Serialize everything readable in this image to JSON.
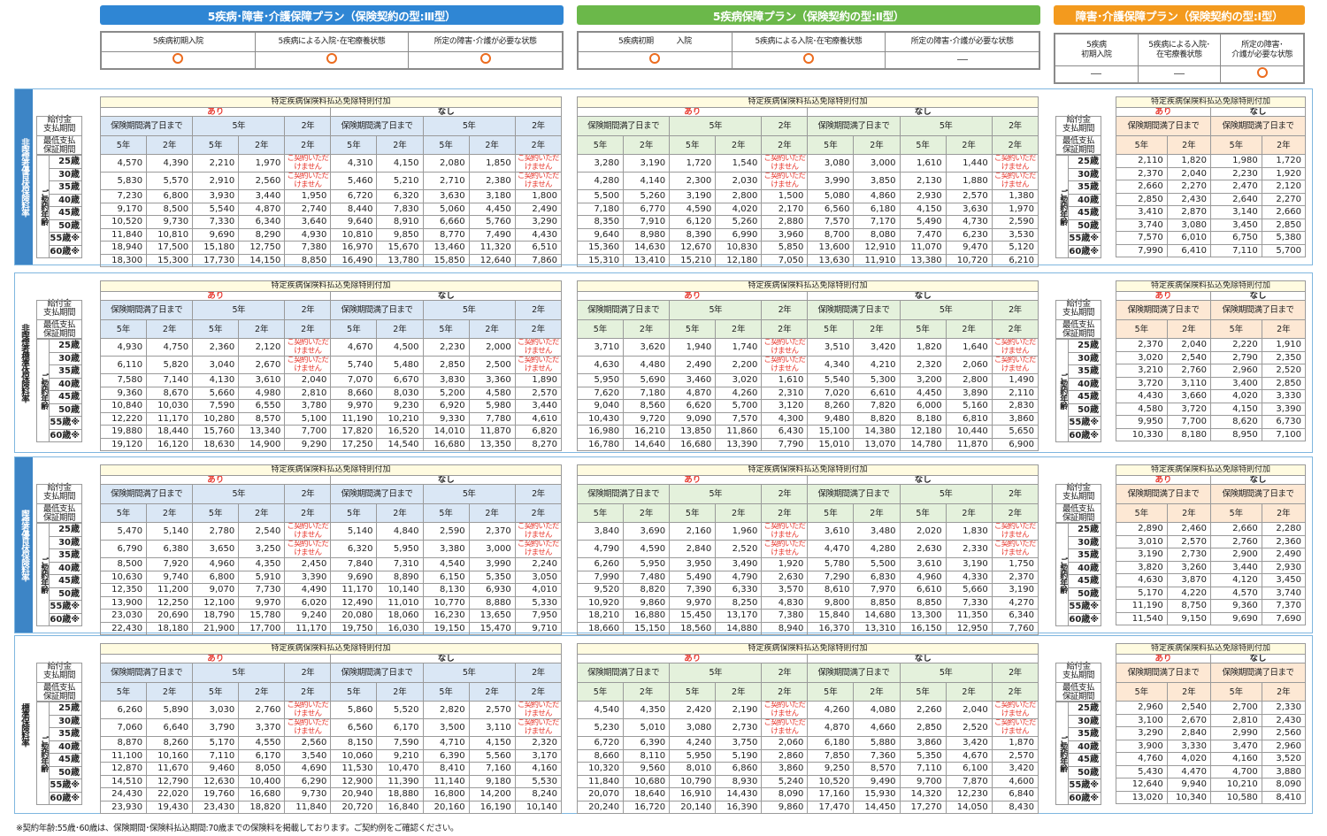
{
  "plans": [
    {
      "title": "5疾病･障害･介護保障プラン（保険契約の型:Ⅲ型）",
      "color": "#2f86d4",
      "conditions": [
        [
          "5疾病初期入院"
        ],
        [
          "5疾病による入院･在宅療養状態"
        ],
        [
          "所定の障害･介護が必要な状態"
        ]
      ],
      "marks": [
        "circle",
        "circle",
        "circle"
      ]
    },
    {
      "title": "5疾病保障プラン（保険契約の型:Ⅱ型）",
      "color": "#6bb84a",
      "conditions": [
        [
          "5疾病初期　　　入院"
        ],
        [
          "5疾病による入院･在宅療養状態"
        ],
        [
          "所定の障害･介護が必要な状態"
        ]
      ],
      "marks": [
        "circle",
        "circle",
        "dash"
      ]
    },
    {
      "title": "障害･介護保障プラン（保険契約の型:Ⅰ型）",
      "color": "#f39a1e",
      "conditions": [
        [
          "5疾病",
          "初期入院"
        ],
        [
          "5疾病による入院･",
          "在宅療養状態"
        ],
        [
          "所定の障害･",
          "介護が必要な状態"
        ]
      ],
      "marks": [
        "dash",
        "dash",
        "circle"
      ]
    }
  ],
  "labels": {
    "waiver_title": "特定疾病保険料払込免除特則付加",
    "with": "あり",
    "without": "なし",
    "period_full": "保険期間満了日まで",
    "y5": "5年",
    "y2": "2年",
    "pay_period": [
      "給付金",
      "支払期間"
    ],
    "min_guarantee": [
      "最低支払",
      "保証期間"
    ],
    "contract_age": "ご契約年齢",
    "not_available": "ご契約いただけません"
  },
  "ages": [
    "25歳",
    "30歳",
    "35歳",
    "40歳",
    "45歳",
    "50歳",
    "55歳※",
    "60歳※"
  ],
  "sections": [
    {
      "name": "非喫煙者優良体保険料率",
      "highlight": true,
      "plan3": [
        [
          "4,570",
          "4,390",
          "2,210",
          "1,970",
          "NA",
          "4,310",
          "4,150",
          "2,080",
          "1,850",
          "NA"
        ],
        [
          "5,830",
          "5,570",
          "2,910",
          "2,560",
          "NA",
          "5,460",
          "5,210",
          "2,710",
          "2,380",
          "NA"
        ],
        [
          "7,230",
          "6,800",
          "3,930",
          "3,440",
          "1,950",
          "6,720",
          "6,320",
          "3,630",
          "3,180",
          "1,800"
        ],
        [
          "9,170",
          "8,500",
          "5,540",
          "4,870",
          "2,740",
          "8,440",
          "7,830",
          "5,060",
          "4,450",
          "2,490"
        ],
        [
          "10,520",
          "9,730",
          "7,330",
          "6,340",
          "3,640",
          "9,640",
          "8,910",
          "6,660",
          "5,760",
          "3,290"
        ],
        [
          "11,840",
          "10,810",
          "9,690",
          "8,290",
          "4,930",
          "10,810",
          "9,850",
          "8,770",
          "7,490",
          "4,430"
        ],
        [
          "18,940",
          "17,500",
          "15,180",
          "12,750",
          "7,380",
          "16,970",
          "15,670",
          "13,460",
          "11,320",
          "6,510"
        ],
        [
          "18,300",
          "15,300",
          "17,730",
          "14,150",
          "8,850",
          "16,490",
          "13,780",
          "15,850",
          "12,640",
          "7,860"
        ]
      ],
      "plan2": [
        [
          "3,280",
          "3,190",
          "1,720",
          "1,540",
          "NA",
          "3,080",
          "3,000",
          "1,610",
          "1,440",
          "NA"
        ],
        [
          "4,280",
          "4,140",
          "2,300",
          "2,030",
          "NA",
          "3,990",
          "3,850",
          "2,130",
          "1,880",
          "NA"
        ],
        [
          "5,500",
          "5,260",
          "3,190",
          "2,800",
          "1,500",
          "5,080",
          "4,860",
          "2,930",
          "2,570",
          "1,380"
        ],
        [
          "7,180",
          "6,770",
          "4,590",
          "4,020",
          "2,170",
          "6,560",
          "6,180",
          "4,150",
          "3,630",
          "1,970"
        ],
        [
          "8,350",
          "7,910",
          "6,120",
          "5,260",
          "2,880",
          "7,570",
          "7,170",
          "5,490",
          "4,730",
          "2,590"
        ],
        [
          "9,640",
          "8,980",
          "8,390",
          "6,990",
          "3,960",
          "8,700",
          "8,080",
          "7,470",
          "6,230",
          "3,530"
        ],
        [
          "15,360",
          "14,630",
          "12,670",
          "10,830",
          "5,850",
          "13,600",
          "12,910",
          "11,070",
          "9,470",
          "5,120"
        ],
        [
          "15,310",
          "13,410",
          "15,210",
          "12,180",
          "7,050",
          "13,630",
          "11,910",
          "13,380",
          "10,720",
          "6,210"
        ]
      ],
      "plan1": [
        [
          "2,110",
          "1,820",
          "1,980",
          "1,720"
        ],
        [
          "2,370",
          "2,040",
          "2,230",
          "1,920"
        ],
        [
          "2,660",
          "2,270",
          "2,470",
          "2,120"
        ],
        [
          "2,850",
          "2,430",
          "2,640",
          "2,270"
        ],
        [
          "3,410",
          "2,870",
          "3,140",
          "2,660"
        ],
        [
          "3,740",
          "3,080",
          "3,450",
          "2,850"
        ],
        [
          "7,570",
          "6,010",
          "6,750",
          "5,380"
        ],
        [
          "7,990",
          "6,410",
          "7,110",
          "5,700"
        ]
      ]
    },
    {
      "name": "非喫煙者標準体保険料率",
      "highlight": false,
      "plan3": [
        [
          "4,930",
          "4,750",
          "2,360",
          "2,120",
          "NA",
          "4,670",
          "4,500",
          "2,230",
          "2,000",
          "NA"
        ],
        [
          "6,110",
          "5,820",
          "3,040",
          "2,670",
          "NA",
          "5,740",
          "5,480",
          "2,850",
          "2,500",
          "NA"
        ],
        [
          "7,580",
          "7,140",
          "4,130",
          "3,610",
          "2,040",
          "7,070",
          "6,670",
          "3,830",
          "3,360",
          "1,890"
        ],
        [
          "9,360",
          "8,670",
          "5,660",
          "4,980",
          "2,810",
          "8,660",
          "8,030",
          "5,200",
          "4,580",
          "2,570"
        ],
        [
          "10,840",
          "10,030",
          "7,590",
          "6,550",
          "3,780",
          "9,970",
          "9,230",
          "6,920",
          "5,980",
          "3,440"
        ],
        [
          "12,220",
          "11,170",
          "10,280",
          "8,570",
          "5,100",
          "11,190",
          "10,210",
          "9,330",
          "7,780",
          "4,610"
        ],
        [
          "19,880",
          "18,440",
          "15,760",
          "13,340",
          "7,700",
          "17,820",
          "16,520",
          "14,010",
          "11,870",
          "6,820"
        ],
        [
          "19,120",
          "16,120",
          "18,630",
          "14,900",
          "9,290",
          "17,250",
          "14,540",
          "16,680",
          "13,350",
          "8,270"
        ]
      ],
      "plan2": [
        [
          "3,710",
          "3,620",
          "1,940",
          "1,740",
          "NA",
          "3,510",
          "3,420",
          "1,820",
          "1,640",
          "NA"
        ],
        [
          "4,630",
          "4,480",
          "2,490",
          "2,200",
          "NA",
          "4,340",
          "4,210",
          "2,320",
          "2,060",
          "NA"
        ],
        [
          "5,950",
          "5,690",
          "3,460",
          "3,020",
          "1,610",
          "5,540",
          "5,300",
          "3,200",
          "2,800",
          "1,490"
        ],
        [
          "7,620",
          "7,180",
          "4,870",
          "4,260",
          "2,310",
          "7,020",
          "6,610",
          "4,450",
          "3,890",
          "2,110"
        ],
        [
          "9,040",
          "8,560",
          "6,620",
          "5,700",
          "3,120",
          "8,260",
          "7,820",
          "6,000",
          "5,160",
          "2,830"
        ],
        [
          "10,430",
          "9,720",
          "9,090",
          "7,570",
          "4,300",
          "9,480",
          "8,820",
          "8,180",
          "6,810",
          "3,860"
        ],
        [
          "16,980",
          "16,210",
          "13,850",
          "11,860",
          "6,430",
          "15,100",
          "14,380",
          "12,180",
          "10,440",
          "5,650"
        ],
        [
          "16,780",
          "14,640",
          "16,680",
          "13,390",
          "7,790",
          "15,010",
          "13,070",
          "14,780",
          "11,870",
          "6,900"
        ]
      ],
      "plan1": [
        [
          "2,370",
          "2,040",
          "2,220",
          "1,910"
        ],
        [
          "3,020",
          "2,540",
          "2,790",
          "2,350"
        ],
        [
          "3,210",
          "2,760",
          "2,960",
          "2,520"
        ],
        [
          "3,720",
          "3,110",
          "3,400",
          "2,850"
        ],
        [
          "4,430",
          "3,660",
          "4,020",
          "3,330"
        ],
        [
          "4,580",
          "3,720",
          "4,150",
          "3,390"
        ],
        [
          "9,950",
          "7,700",
          "8,620",
          "6,730"
        ],
        [
          "10,330",
          "8,180",
          "8,950",
          "7,100"
        ]
      ]
    },
    {
      "name": "喫煙者優良体保険料率",
      "highlight": true,
      "plan3": [
        [
          "5,470",
          "5,140",
          "2,780",
          "2,540",
          "NA",
          "5,140",
          "4,840",
          "2,590",
          "2,370",
          "NA"
        ],
        [
          "6,790",
          "6,380",
          "3,650",
          "3,250",
          "NA",
          "6,320",
          "5,950",
          "3,380",
          "3,000",
          "NA"
        ],
        [
          "8,500",
          "7,920",
          "4,960",
          "4,350",
          "2,450",
          "7,840",
          "7,310",
          "4,540",
          "3,990",
          "2,240"
        ],
        [
          "10,630",
          "9,740",
          "6,800",
          "5,910",
          "3,390",
          "9,690",
          "8,890",
          "6,150",
          "5,350",
          "3,050"
        ],
        [
          "12,350",
          "11,200",
          "9,070",
          "7,730",
          "4,490",
          "11,170",
          "10,140",
          "8,130",
          "6,930",
          "4,010"
        ],
        [
          "13,900",
          "12,250",
          "12,100",
          "9,970",
          "6,020",
          "12,490",
          "11,010",
          "10,770",
          "8,880",
          "5,330"
        ],
        [
          "23,030",
          "20,690",
          "18,790",
          "15,780",
          "9,240",
          "20,080",
          "18,060",
          "16,230",
          "13,650",
          "7,950"
        ],
        [
          "22,430",
          "18,180",
          "21,900",
          "17,700",
          "11,170",
          "19,750",
          "16,030",
          "19,150",
          "15,470",
          "9,710"
        ]
      ],
      "plan2": [
        [
          "3,840",
          "3,690",
          "2,160",
          "1,960",
          "NA",
          "3,610",
          "3,480",
          "2,020",
          "1,830",
          "NA"
        ],
        [
          "4,790",
          "4,590",
          "2,840",
          "2,520",
          "NA",
          "4,470",
          "4,280",
          "2,630",
          "2,330",
          "NA"
        ],
        [
          "6,260",
          "5,950",
          "3,950",
          "3,490",
          "1,920",
          "5,780",
          "5,500",
          "3,610",
          "3,190",
          "1,750"
        ],
        [
          "7,990",
          "7,480",
          "5,490",
          "4,790",
          "2,630",
          "7,290",
          "6,830",
          "4,960",
          "4,330",
          "2,370"
        ],
        [
          "9,520",
          "8,820",
          "7,390",
          "6,330",
          "3,570",
          "8,610",
          "7,970",
          "6,610",
          "5,660",
          "3,190"
        ],
        [
          "10,920",
          "9,860",
          "9,970",
          "8,250",
          "4,830",
          "9,800",
          "8,850",
          "8,850",
          "7,330",
          "4,270"
        ],
        [
          "18,210",
          "16,880",
          "15,450",
          "13,170",
          "7,380",
          "15,840",
          "14,680",
          "13,300",
          "11,350",
          "6,340"
        ],
        [
          "18,660",
          "15,150",
          "18,560",
          "14,880",
          "8,940",
          "16,370",
          "13,310",
          "16,150",
          "12,950",
          "7,760"
        ]
      ],
      "plan1": [
        [
          "2,890",
          "2,460",
          "2,660",
          "2,280"
        ],
        [
          "3,010",
          "2,570",
          "2,760",
          "2,360"
        ],
        [
          "3,190",
          "2,730",
          "2,900",
          "2,490"
        ],
        [
          "3,820",
          "3,260",
          "3,440",
          "2,930"
        ],
        [
          "4,630",
          "3,870",
          "4,120",
          "3,450"
        ],
        [
          "5,170",
          "4,220",
          "4,570",
          "3,740"
        ],
        [
          "11,190",
          "8,750",
          "9,360",
          "7,370"
        ],
        [
          "11,540",
          "9,150",
          "9,690",
          "7,690"
        ]
      ]
    },
    {
      "name": "標準保険料率",
      "highlight": false,
      "plan3": [
        [
          "6,260",
          "5,890",
          "3,030",
          "2,760",
          "NA",
          "5,860",
          "5,520",
          "2,820",
          "2,570",
          "NA"
        ],
        [
          "7,060",
          "6,640",
          "3,790",
          "3,370",
          "NA",
          "6,560",
          "6,170",
          "3,500",
          "3,110",
          "NA"
        ],
        [
          "8,870",
          "8,260",
          "5,170",
          "4,550",
          "2,560",
          "8,150",
          "7,590",
          "4,710",
          "4,150",
          "2,320"
        ],
        [
          "11,100",
          "10,160",
          "7,110",
          "6,170",
          "3,540",
          "10,060",
          "9,210",
          "6,390",
          "5,560",
          "3,170"
        ],
        [
          "12,870",
          "11,670",
          "9,460",
          "8,050",
          "4,690",
          "11,530",
          "10,470",
          "8,410",
          "7,160",
          "4,160"
        ],
        [
          "14,510",
          "12,790",
          "12,630",
          "10,400",
          "6,290",
          "12,900",
          "11,390",
          "11,140",
          "9,180",
          "5,530"
        ],
        [
          "24,430",
          "22,020",
          "19,760",
          "16,680",
          "9,730",
          "20,940",
          "18,880",
          "16,800",
          "14,200",
          "8,240"
        ],
        [
          "23,930",
          "19,430",
          "23,430",
          "18,820",
          "11,840",
          "20,720",
          "16,840",
          "20,160",
          "16,190",
          "10,140"
        ]
      ],
      "plan2": [
        [
          "4,540",
          "4,350",
          "2,420",
          "2,190",
          "NA",
          "4,260",
          "4,080",
          "2,260",
          "2,040",
          "NA"
        ],
        [
          "5,230",
          "5,010",
          "3,080",
          "2,730",
          "NA",
          "4,870",
          "4,660",
          "2,850",
          "2,520",
          "NA"
        ],
        [
          "6,720",
          "6,390",
          "4,240",
          "3,750",
          "2,060",
          "6,180",
          "5,880",
          "3,860",
          "3,420",
          "1,870"
        ],
        [
          "8,660",
          "8,110",
          "5,950",
          "5,190",
          "2,860",
          "7,850",
          "7,360",
          "5,350",
          "4,670",
          "2,570"
        ],
        [
          "10,320",
          "9,560",
          "8,010",
          "6,860",
          "3,860",
          "9,250",
          "8,570",
          "7,110",
          "6,100",
          "3,420"
        ],
        [
          "11,840",
          "10,680",
          "10,790",
          "8,930",
          "5,240",
          "10,520",
          "9,490",
          "9,700",
          "7,870",
          "4,600"
        ],
        [
          "20,070",
          "18,640",
          "16,910",
          "14,430",
          "8,090",
          "17,160",
          "15,930",
          "14,320",
          "12,230",
          "6,840"
        ],
        [
          "20,240",
          "16,720",
          "20,140",
          "16,390",
          "9,860",
          "17,470",
          "14,450",
          "17,270",
          "14,050",
          "8,430"
        ]
      ],
      "plan1": [
        [
          "2,960",
          "2,540",
          "2,700",
          "2,330"
        ],
        [
          "3,100",
          "2,670",
          "2,810",
          "2,430"
        ],
        [
          "3,290",
          "2,840",
          "2,990",
          "2,560"
        ],
        [
          "3,900",
          "3,330",
          "3,470",
          "2,960"
        ],
        [
          "4,760",
          "4,020",
          "4,160",
          "3,520"
        ],
        [
          "5,430",
          "4,470",
          "4,700",
          "3,880"
        ],
        [
          "12,640",
          "9,940",
          "10,210",
          "8,090"
        ],
        [
          "13,020",
          "10,340",
          "10,580",
          "8,410"
        ]
      ]
    }
  ],
  "footnote": "※契約年齢:55歳･60歳は、保険期間･保険料払込期間:70歳までの保険料を掲載しております。ご契約例をご確認ください。"
}
